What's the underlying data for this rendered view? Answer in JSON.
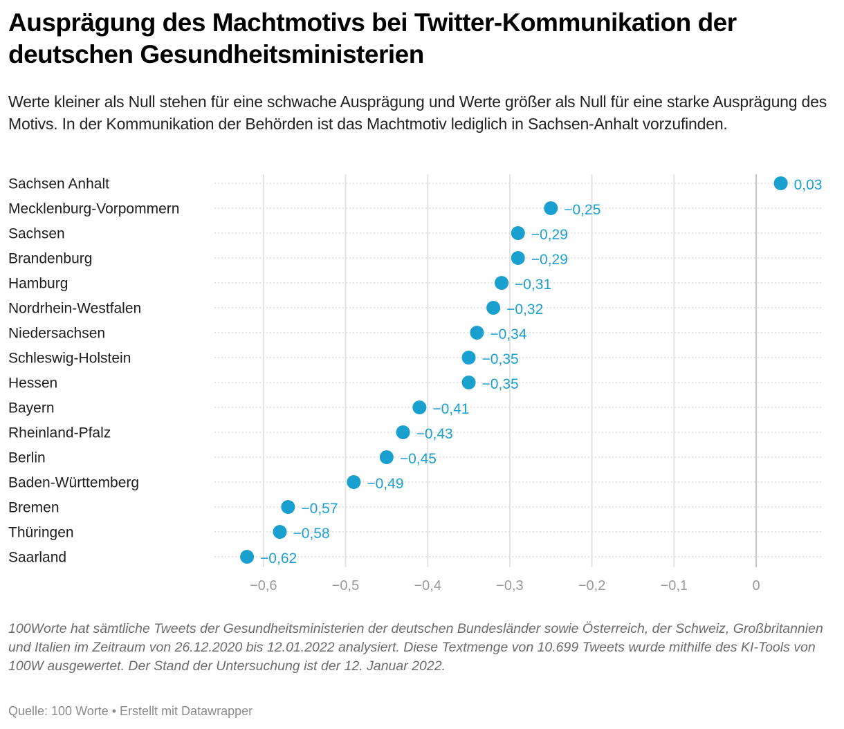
{
  "header": {
    "title": "Ausprägung des Machtmotivs bei Twitter-Kommunikation der deutschen Gesundheitsministerien",
    "subtitle": "Werte kleiner als Null stehen für eine schwache Ausprägung und Werte größer als Null für eine starke Ausprägung des Motivs. In der Kommunikation der Behörden ist das Machtmotiv lediglich in Sachsen-Anhalt vorzufinden."
  },
  "chart_data": {
    "type": "scatter",
    "subtype": "dot-plot",
    "title": "Ausprägung des Machtmotivs bei Twitter-Kommunikation der deutschen Gesundheitsministerien",
    "xlabel": "",
    "ylabel": "",
    "xlim": [
      -0.63,
      0.04
    ],
    "grid": true,
    "legend": "none",
    "dot_color": "#1aa0cf",
    "x_ticks": [
      -0.6,
      -0.5,
      -0.4,
      -0.3,
      -0.2,
      -0.1,
      0
    ],
    "x_tick_labels": [
      "−0,6",
      "−0,5",
      "−0,4",
      "−0,3",
      "−0,2",
      "−0,1",
      "0"
    ],
    "categories": [
      "Sachsen Anhalt",
      "Mecklenburg-Vorpommern",
      "Sachsen",
      "Brandenburg",
      "Hamburg",
      "Nordrhein-Westfalen",
      "Niedersachsen",
      "Schleswig-Holstein",
      "Hessen",
      "Bayern",
      "Rheinland-Pfalz",
      "Berlin",
      "Baden-Württemberg",
      "Bremen",
      "Thüringen",
      "Saarland"
    ],
    "values": [
      0.03,
      -0.25,
      -0.29,
      -0.29,
      -0.31,
      -0.32,
      -0.34,
      -0.35,
      -0.35,
      -0.41,
      -0.43,
      -0.45,
      -0.49,
      -0.57,
      -0.58,
      -0.62
    ],
    "value_labels": [
      "0,03",
      "−0,25",
      "−0,29",
      "−0,29",
      "−0,31",
      "−0,32",
      "−0,34",
      "−0,35",
      "−0,35",
      "−0,41",
      "−0,43",
      "−0,45",
      "−0,49",
      "−0,57",
      "−0,58",
      "−0,62"
    ]
  },
  "footer": {
    "notes": "100Worte hat sämtliche Tweets der Gesundheitsministerien der deutschen Bundesländer sowie Österreich, der Schweiz, Großbritannien und Italien im Zeitraum von 26.12.2020 bis 12.01.2022 analysiert. Diese Textmenge von 10.699 Tweets wurde mithilfe des KI-Tools von 100W ausgewertet. Der Stand der Untersuchung ist der 12. Januar 2022.",
    "source": "Quelle: 100 Worte • Erstellt mit Datawrapper"
  }
}
